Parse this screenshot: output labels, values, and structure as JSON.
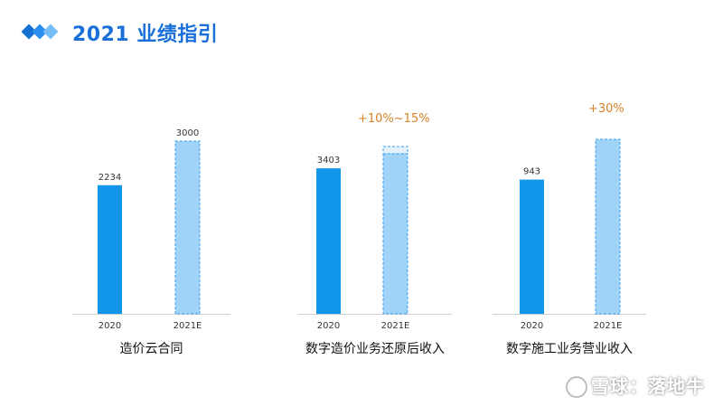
{
  "header": {
    "title": "2021 业绩指引"
  },
  "chart_data": [
    {
      "type": "bar",
      "categories": [
        "2020",
        "2021E"
      ],
      "values": [
        2234,
        3000
      ],
      "title": "造价云合同",
      "ylim": [
        0,
        3000
      ],
      "colors": {
        "actual": "#1296ea",
        "estimate": "#9fd3f7",
        "estimate_border": "#3e9ff0"
      },
      "growth_label": ""
    },
    {
      "type": "bar",
      "categories": [
        "2020",
        "2021E"
      ],
      "values": [
        3403,
        3743
      ],
      "range_top": 3913,
      "title": "数字造价业务还原后收入",
      "ylim": [
        0,
        3913
      ],
      "colors": {
        "actual": "#1296ea",
        "estimate": "#9fd3f7",
        "estimate_border": "#3e9ff0"
      },
      "growth_label": "+10%~15%"
    },
    {
      "type": "bar",
      "categories": [
        "2020",
        "2021E"
      ],
      "values": [
        943,
        1226
      ],
      "title": "数字施工业务营业收入",
      "ylim": [
        0,
        1226
      ],
      "colors": {
        "actual": "#1296ea",
        "estimate": "#9fd3f7",
        "estimate_border": "#3e9ff0"
      },
      "growth_label": "+30%"
    }
  ],
  "watermark": {
    "text": "雪球：落地牛"
  }
}
